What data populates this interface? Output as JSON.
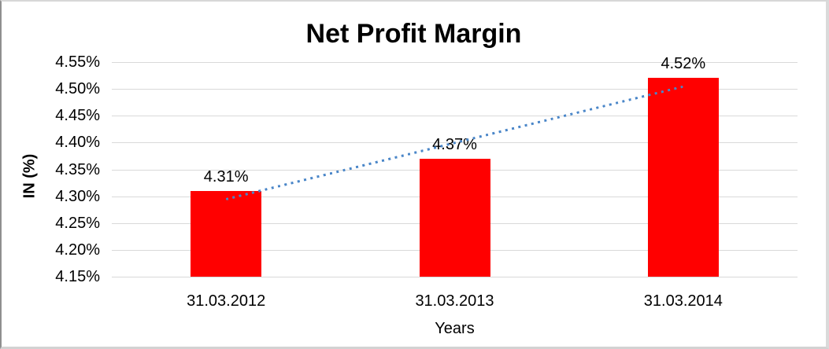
{
  "chart_data": {
    "type": "bar",
    "title": "Net Profit Margin",
    "categories": [
      "31.03.2012",
      "31.03.2013",
      "31.03.2014"
    ],
    "values": [
      4.31,
      4.37,
      4.52
    ],
    "data_labels": [
      "4.31%",
      "4.37%",
      "4.52%"
    ],
    "xlabel": "Years",
    "ylabel": "IN (%)",
    "ylim": [
      4.15,
      4.55
    ],
    "yticks": [
      {
        "value": 4.15,
        "label": "4.15%"
      },
      {
        "value": 4.2,
        "label": "4.20%"
      },
      {
        "value": 4.25,
        "label": "4.25%"
      },
      {
        "value": 4.3,
        "label": "4.30%"
      },
      {
        "value": 4.35,
        "label": "4.35%"
      },
      {
        "value": 4.4,
        "label": "4.40%"
      },
      {
        "value": 4.45,
        "label": "4.45%"
      },
      {
        "value": 4.5,
        "label": "4.50%"
      },
      {
        "value": 4.55,
        "label": "4.55%"
      }
    ],
    "grid": true,
    "legend": "none",
    "bar_color": "#FF0000",
    "gridline_color": "#D9D9D9",
    "text_color": "#000000",
    "trendline": {
      "type": "linear",
      "style": "dotted",
      "color": "#4A86C8",
      "start_value": 4.295,
      "end_value": 4.505
    }
  }
}
